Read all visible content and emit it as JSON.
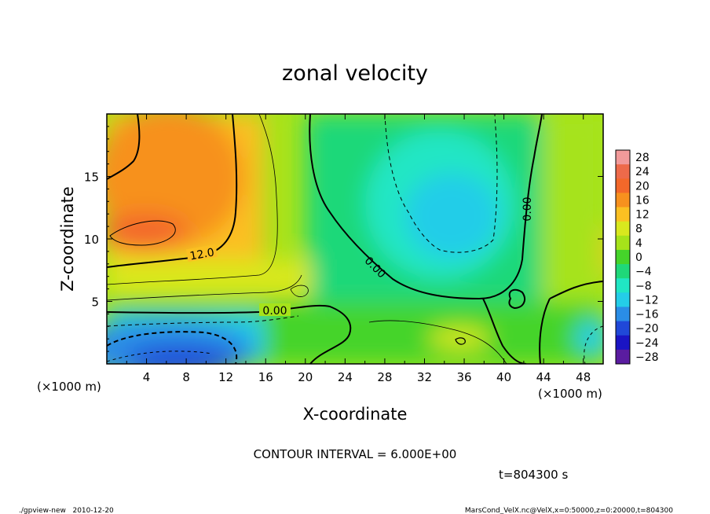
{
  "chart_data": {
    "type": "contour",
    "title": "zonal velocity",
    "xlabel": "X-coordinate",
    "ylabel": "Z-coordinate",
    "x_unit": "(×1000 m)",
    "y_unit": "(×1000 m)",
    "xlim": [
      0,
      50
    ],
    "ylim": [
      0,
      20
    ],
    "x_ticks": [
      "4",
      "8",
      "12",
      "16",
      "20",
      "24",
      "28",
      "32",
      "36",
      "40",
      "44",
      "48"
    ],
    "y_ticks": [
      "5",
      "10",
      "15"
    ],
    "colorbar": {
      "labels": [
        "28",
        "24",
        "20",
        "16",
        "12",
        "8",
        "4",
        "0",
        "−4",
        "−8",
        "−12",
        "−16",
        "−20",
        "−24",
        "−28"
      ],
      "colors": [
        "#f29a9a",
        "#ee6a4a",
        "#f3682a",
        "#f7911e",
        "#fbc022",
        "#d9e81e",
        "#a6e31a",
        "#45d42a",
        "#1fd879",
        "#20e6c4",
        "#24cde8",
        "#2a8de6",
        "#2048d8",
        "#1a14c4",
        "#5a1ca0"
      ]
    },
    "contour_labels": [
      "12.0",
      "0.00",
      "0.00",
      "0.00"
    ],
    "contour_interval_text": "CONTOUR INTERVAL = 6.000E+00",
    "time_text": "t=804300 s"
  },
  "footer": {
    "left": "./gpview-new   2010-12-20",
    "right": "MarsCond_VelX.nc@VelX,x=0:50000,z=0:20000,t=804300"
  }
}
